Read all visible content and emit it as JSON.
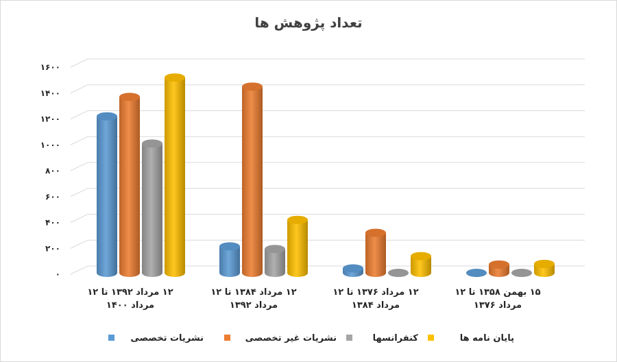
{
  "chart_data": {
    "type": "bar",
    "title": "تعداد پژوهش ها",
    "ylim": [
      0,
      1600
    ],
    "y_ticks": [
      {
        "value": 0,
        "label": "۰"
      },
      {
        "value": 200,
        "label": "۲۰۰"
      },
      {
        "value": 400,
        "label": "۴۰۰"
      },
      {
        "value": 600,
        "label": "۶۰۰"
      },
      {
        "value": 800,
        "label": "۸۰۰"
      },
      {
        "value": 1000,
        "label": "۱۰۰۰"
      },
      {
        "value": 1200,
        "label": "۱۲۰۰"
      },
      {
        "value": 1400,
        "label": "۱۴۰۰"
      },
      {
        "value": 1600,
        "label": "۱۶۰۰"
      }
    ],
    "grid": true,
    "legend_position": "bottom",
    "categories": [
      [
        "۱۲ مرداد ۱۳۹۲ تا ۱۲",
        "مرداد ۱۴۰۰"
      ],
      [
        "۱۲ مرداد ۱۳۸۴ تا ۱۲",
        "مرداد ۱۳۹۲"
      ],
      [
        "۱۲ مرداد ۱۳۷۶ تا ۱۲",
        "مرداد ۱۳۸۴"
      ],
      [
        "۱۵ بهمن ۱۳۵۸ تا ۱۲",
        "مرداد ۱۳۷۶"
      ]
    ],
    "series": [
      {
        "name": "نشریات تخصصی",
        "color": "#5b9bd5",
        "values": [
          1220,
          215,
          45,
          5
        ]
      },
      {
        "name": "نشریات غیر تخصصی",
        "color": "#ed7d31",
        "values": [
          1370,
          1450,
          320,
          75
        ]
      },
      {
        "name": "کنفرانسها",
        "color": "#a5a5a5",
        "values": [
          1010,
          195,
          5,
          10
        ]
      },
      {
        "name": "پایان نامه ها",
        "color": "#ffc000",
        "values": [
          1520,
          420,
          140,
          80
        ]
      }
    ]
  }
}
